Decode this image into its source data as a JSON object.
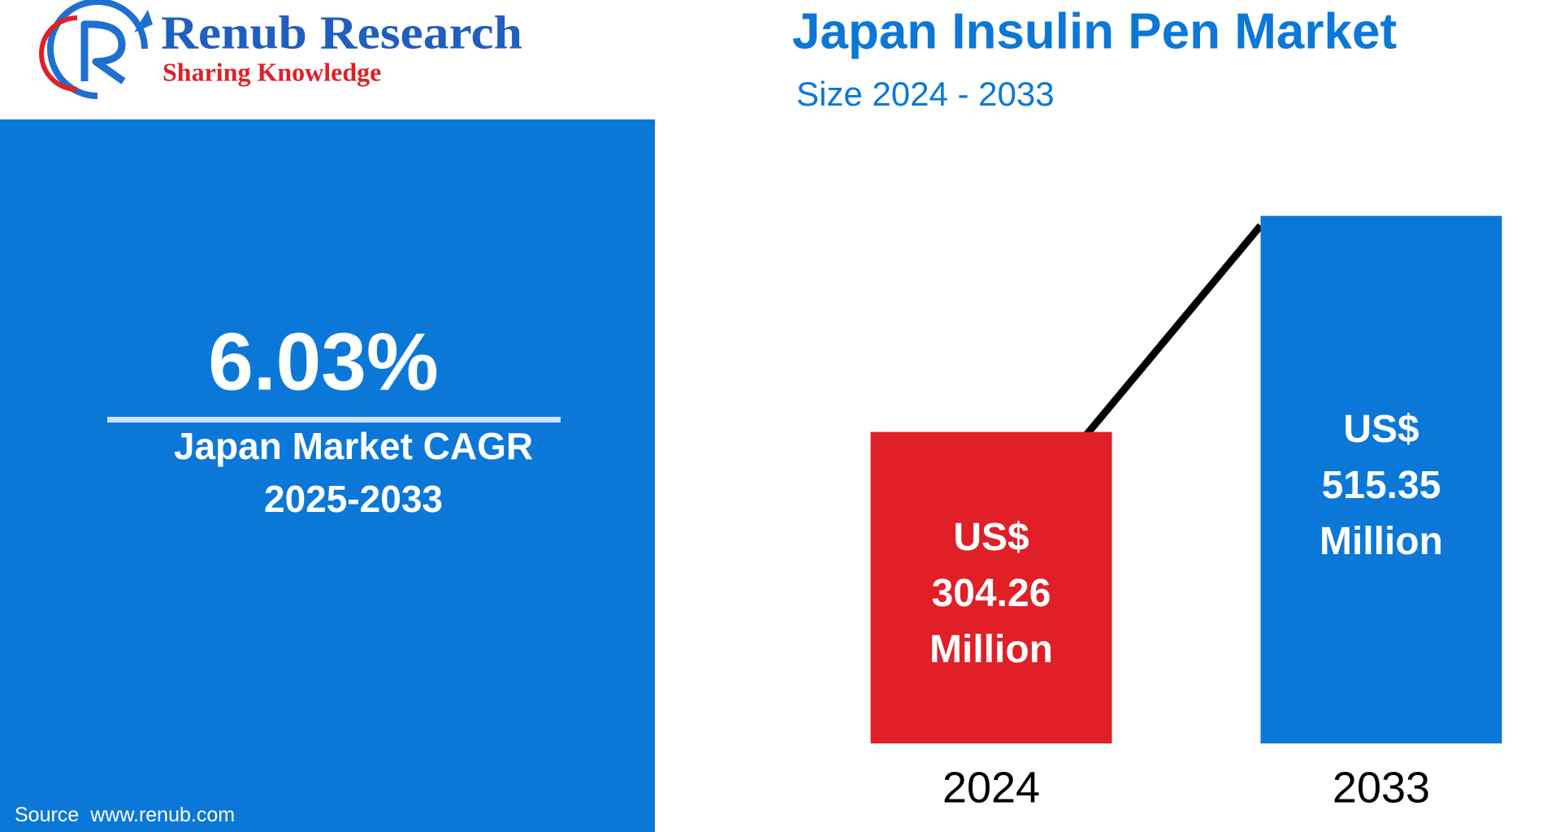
{
  "logo": {
    "name": "Renub Research",
    "tagline": "Sharing Knowledge"
  },
  "panel": {
    "cagr": "6.03%",
    "caption": "Japan Market CAGR",
    "period": "2025-2033"
  },
  "source": {
    "label": "Source",
    "url": "www.renub.com"
  },
  "chart_data": {
    "type": "bar",
    "title": "Japan Insulin Pen Market",
    "subtitle": "Size 2024 - 2033",
    "categories": [
      "2024",
      "2033"
    ],
    "values": [
      304.26,
      515.35
    ],
    "value_labels": [
      [
        "US$",
        "304.26",
        "Million"
      ],
      [
        "US$",
        "515.35",
        "Million"
      ]
    ],
    "colors": [
      "#e11f26",
      "#0b78d8"
    ]
  }
}
